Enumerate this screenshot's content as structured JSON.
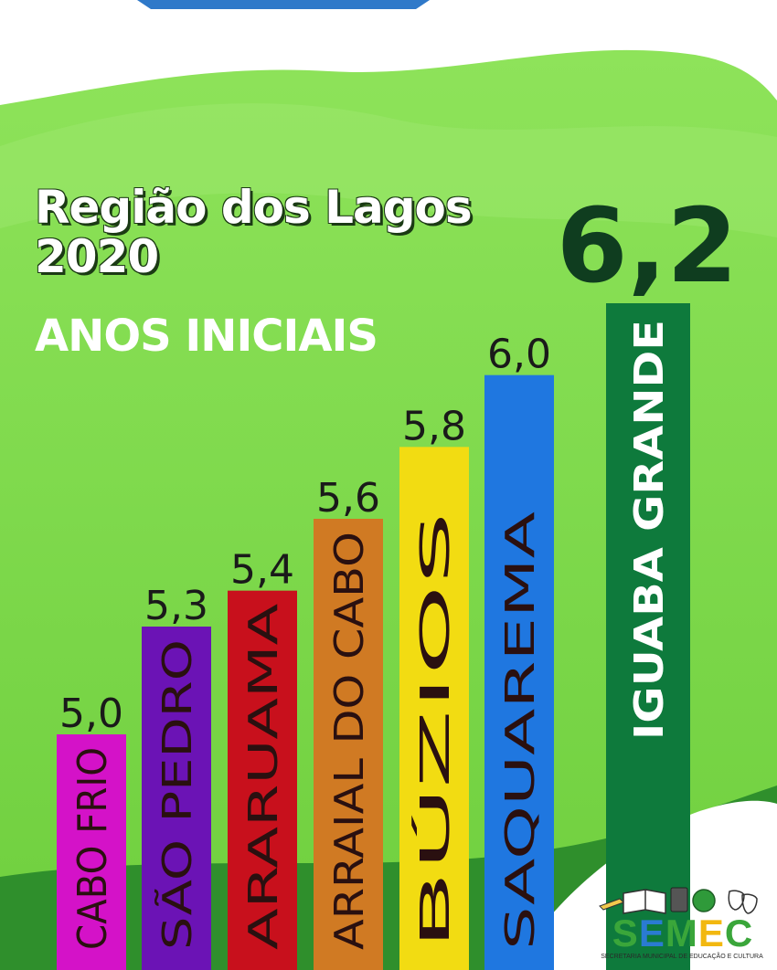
{
  "title_line1": "Região dos Lagos",
  "title_line2": "2020",
  "subtitle": "ANOS INICIAIS",
  "logo": {
    "word": "SEMEC",
    "caption": "SECRETARIA MUNICIPAL DE EDUCAÇÃO E CULTURA"
  },
  "colors": {
    "background_green": "#7ad94a",
    "highlight_value": "#0f3d1f",
    "text_white": "#ffffff"
  },
  "chart_data": {
    "type": "bar",
    "categories": [
      "CABO FRIO",
      "SÃO PEDRO",
      "ARARUAMA",
      "ARRAIAL DO CABO",
      "BÚZIOS",
      "SAQUAREMA",
      "IGUABA GRANDE"
    ],
    "values": [
      5.0,
      5.3,
      5.4,
      5.6,
      5.8,
      6.0,
      6.2
    ],
    "value_labels": [
      "5,0",
      "5,3",
      "5,4",
      "5,6",
      "5,8",
      "6,0",
      "6,2"
    ],
    "bar_colors": [
      "#d412c8",
      "#6b13b5",
      "#c8101c",
      "#d07a23",
      "#f2dc12",
      "#1f77e0",
      "#0e7a3c"
    ],
    "label_colors": [
      "#2a1010",
      "#2a1010",
      "#2a1010",
      "#2a1010",
      "#2a1010",
      "#2a1010",
      "#ffffff"
    ],
    "highlight": "IGUABA GRANDE",
    "ylim": [
      4.4,
      6.2
    ],
    "title": "Região dos Lagos 2020",
    "xlabel": "",
    "ylabel": ""
  }
}
